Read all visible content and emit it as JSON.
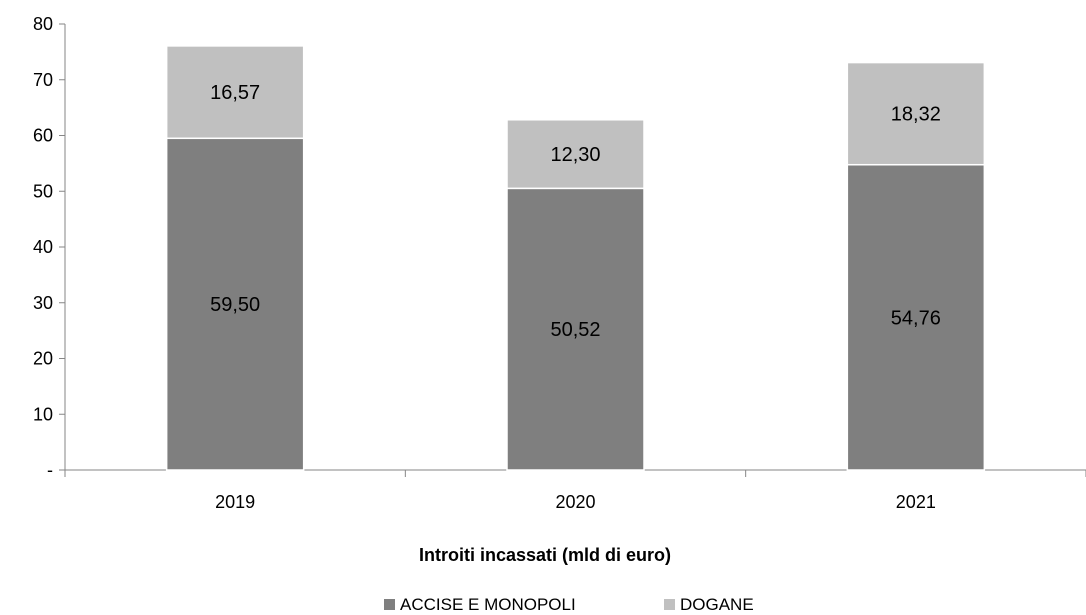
{
  "chart_data": {
    "type": "bar",
    "stacked": true,
    "categories": [
      "2019",
      "2020",
      "2021"
    ],
    "series": [
      {
        "name": "ACCISE E MONOPOLI",
        "values": [
          59.5,
          50.52,
          54.76
        ],
        "labels": [
          "59,50",
          "50,52",
          "54,76"
        ],
        "color": "#7f7f7f"
      },
      {
        "name": "DOGANE",
        "values": [
          16.57,
          12.3,
          18.32
        ],
        "labels": [
          "16,57",
          "12,30",
          "18,32"
        ],
        "color": "#c0c0c0"
      }
    ],
    "yticks": [
      0,
      10,
      20,
      30,
      40,
      50,
      60,
      70,
      80
    ],
    "ytick_labels": [
      "-",
      "10",
      "20",
      "30",
      "40",
      "50",
      "60",
      "70",
      "80"
    ],
    "ylim": [
      0,
      80
    ],
    "xlabel": "Introiti incassati (mld di euro)",
    "ylabel": "",
    "grid": false,
    "legend_position": "bottom"
  }
}
